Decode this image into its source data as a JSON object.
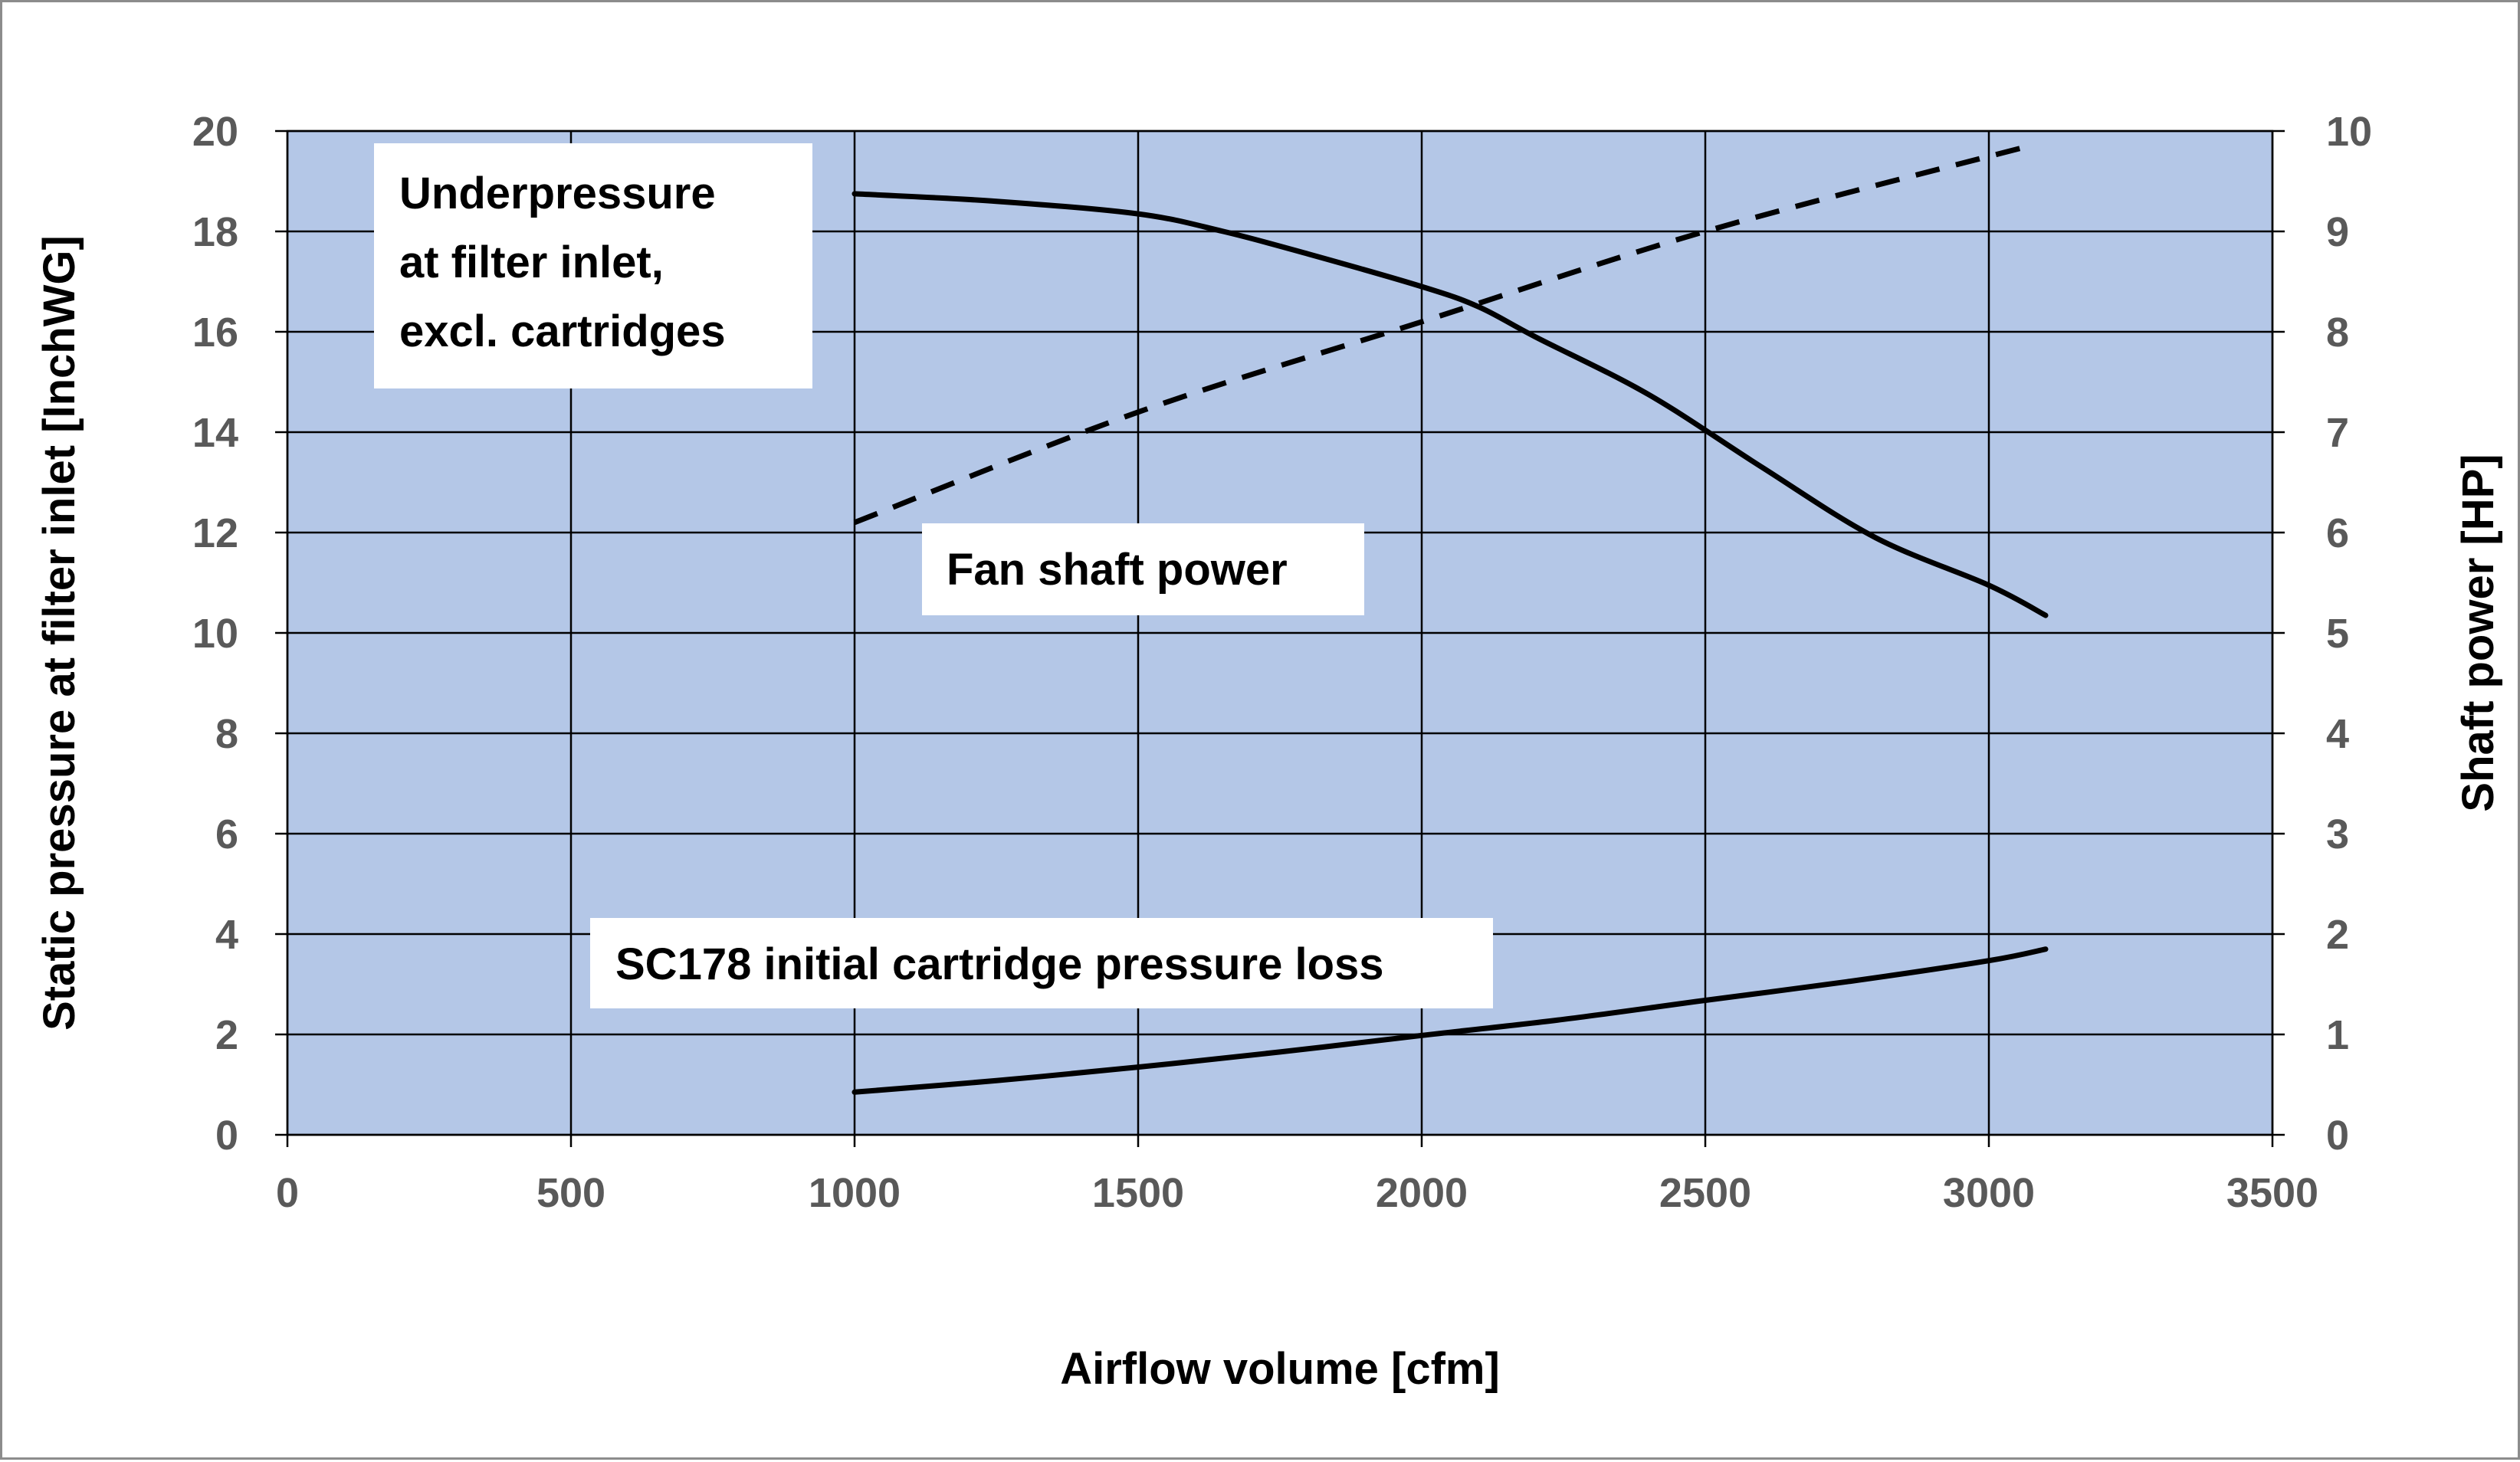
{
  "chart_data": {
    "type": "line",
    "title": "",
    "xlabel": "Airflow volume [cfm]",
    "ylabel": "Static pressure at filter inlet [InchWG]",
    "y2label": "Shaft power [HP]",
    "xlim": [
      0,
      3500
    ],
    "ylim": [
      0,
      20
    ],
    "y2lim": [
      0,
      10
    ],
    "xticks": [
      "0",
      "500",
      "1000",
      "1500",
      "2000",
      "2500",
      "3000",
      "3500"
    ],
    "yticks": [
      "0",
      "2",
      "4",
      "6",
      "8",
      "10",
      "12",
      "14",
      "16",
      "18",
      "20"
    ],
    "y2ticks": [
      "0",
      "1",
      "2",
      "3",
      "4",
      "5",
      "6",
      "7",
      "8",
      "9",
      "10"
    ],
    "grid": true,
    "plot_background": "#b4c7e7",
    "series": [
      {
        "axis": "left",
        "style": "solid",
        "color": "#000000",
        "x": [
          1000,
          1250,
          1500,
          1650,
          1800,
          2000,
          2100,
          2200,
          2400,
          2600,
          2800,
          3000,
          3100
        ],
        "y": [
          18.75,
          18.6,
          18.35,
          18.0,
          17.55,
          16.9,
          16.5,
          15.9,
          14.75,
          13.3,
          11.9,
          10.95,
          10.35
        ]
      },
      {
        "axis": "right",
        "style": "dashed",
        "color": "#000000",
        "x": [
          1000,
          1500,
          2000,
          2500,
          3070
        ],
        "y": [
          6.1,
          7.2,
          8.1,
          9.0,
          9.85
        ]
      },
      {
        "axis": "left",
        "style": "solid",
        "color": "#000000",
        "x": [
          1000,
          1250,
          1500,
          1750,
          2000,
          2250,
          2500,
          2750,
          3000,
          3100
        ],
        "y": [
          0.85,
          1.08,
          1.35,
          1.65,
          1.98,
          2.3,
          2.68,
          3.05,
          3.47,
          3.7
        ]
      }
    ],
    "annotations": [
      {
        "lines": [
          "Underpressure",
          "at filter inlet,",
          "excl. cartridges"
        ]
      },
      {
        "lines": [
          "Fan shaft power"
        ]
      },
      {
        "lines": [
          "SC178 initial cartridge pressure loss"
        ]
      }
    ]
  }
}
